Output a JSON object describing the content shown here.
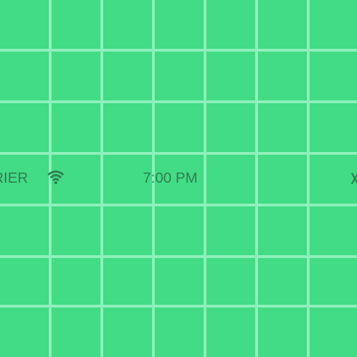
{
  "colors": {
    "background": "#41dc85",
    "grid_line": "#8ff0b9",
    "status_text": "#2f7f50"
  },
  "status_bar": {
    "carrier": "RIER",
    "wifi_icon": "wifi-icon",
    "time": "7:00 PM"
  }
}
